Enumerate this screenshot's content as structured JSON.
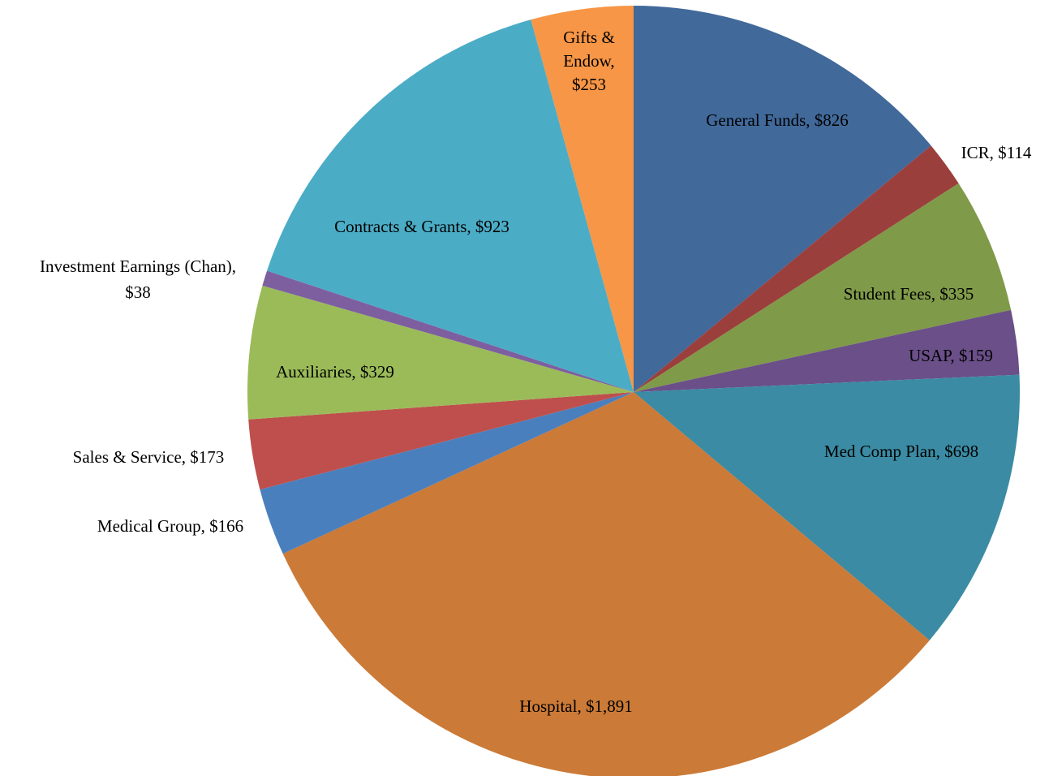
{
  "chart_data": {
    "type": "pie",
    "values": [
      826,
      114,
      335,
      159,
      698,
      1891,
      166,
      173,
      329,
      38,
      923,
      253
    ],
    "labels": [
      [
        "General Funds,  $826"
      ],
      [
        "ICR,  $114"
      ],
      [
        "Student Fees,  $335"
      ],
      [
        "USAP,  $159"
      ],
      [
        "Med Comp Plan,  $698"
      ],
      [
        "Hospital,  $1,891"
      ],
      [
        "Medical Group,  $166"
      ],
      [
        "Sales & Service,  $173"
      ],
      [
        "Auxiliaries,  $329"
      ],
      [
        "Investment Earnings (Chan),",
        "$38"
      ],
      [
        "Contracts & Grants,  $923"
      ],
      [
        "Gifts &",
        "Endow,",
        "$253"
      ]
    ],
    "colors": [
      "#41699a",
      "#9b3f3d",
      "#7f9a48",
      "#6a4f88",
      "#3a8ba3",
      "#cb7a37",
      "#4a7fbd",
      "#be4f4c",
      "#9bbb59",
      "#7d5fa0",
      "#4bacc6",
      "#f79646"
    ]
  }
}
